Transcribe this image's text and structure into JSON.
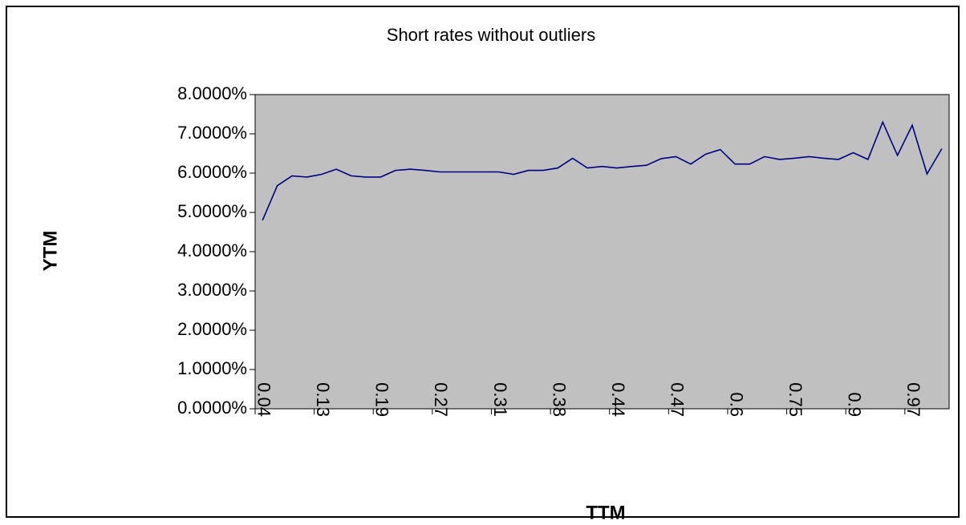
{
  "chart_data": {
    "type": "line",
    "title": "Short rates without outliers",
    "x_label": "TTM",
    "y_label": "YTM",
    "categories": [
      "0.04",
      null,
      null,
      null,
      "0.13",
      null,
      null,
      null,
      "0.19",
      null,
      null,
      null,
      "0.27",
      null,
      null,
      null,
      "0.31",
      null,
      null,
      null,
      "0.38",
      null,
      null,
      null,
      "0.44",
      null,
      null,
      null,
      "0.47",
      null,
      null,
      null,
      "0.6",
      null,
      null,
      null,
      "0.75",
      null,
      null,
      null,
      "0.9",
      null,
      null,
      null,
      "0.97",
      null,
      null
    ],
    "series": [
      {
        "name": "YTM",
        "color": "#000080",
        "values": [
          4.8,
          5.68,
          5.93,
          5.9,
          5.97,
          6.1,
          5.93,
          5.9,
          5.9,
          6.07,
          6.1,
          6.07,
          6.03,
          6.03,
          6.03,
          6.03,
          6.03,
          5.97,
          6.07,
          6.07,
          6.13,
          6.38,
          6.13,
          6.17,
          6.13,
          6.17,
          6.2,
          6.37,
          6.42,
          6.23,
          6.48,
          6.6,
          6.23,
          6.23,
          6.42,
          6.35,
          6.38,
          6.42,
          6.38,
          6.35,
          6.52,
          6.35,
          7.3,
          6.45,
          7.22,
          5.98,
          6.62
        ]
      }
    ],
    "ylim": [
      0,
      8
    ],
    "yticks": [
      {
        "value": 0,
        "label": "0.0000%"
      },
      {
        "value": 1,
        "label": "1.0000%"
      },
      {
        "value": 2,
        "label": "2.0000%"
      },
      {
        "value": 3,
        "label": "3.0000%"
      },
      {
        "value": 4,
        "label": "4.0000%"
      },
      {
        "value": 5,
        "label": "5.0000%"
      },
      {
        "value": 6,
        "label": "6.0000%"
      },
      {
        "value": 7,
        "label": "7.0000%"
      },
      {
        "value": 8,
        "label": "8.0000%"
      }
    ],
    "plot_background": "#c0c0c0"
  }
}
